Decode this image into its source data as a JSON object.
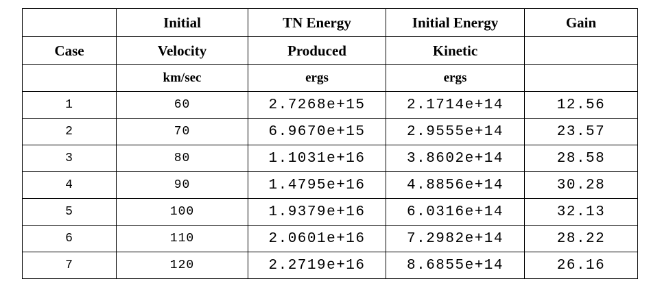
{
  "table": {
    "headers": {
      "case": "Case",
      "velocity_line1": "Initial",
      "velocity_line2": "Velocity",
      "velocity_unit": "km/sec",
      "tn_line1": "TN Energy",
      "tn_line2": "Produced",
      "tn_unit": "ergs",
      "ke_line1": "Initial Energy",
      "ke_line2": "Kinetic",
      "ke_unit": "ergs",
      "gain": "Gain"
    },
    "rows": [
      {
        "case": "1",
        "velocity": "60",
        "tn_energy": "2.7268e+15",
        "kinetic_energy": "2.1714e+14",
        "gain": "12.56"
      },
      {
        "case": "2",
        "velocity": "70",
        "tn_energy": "6.9670e+15",
        "kinetic_energy": "2.9555e+14",
        "gain": "23.57"
      },
      {
        "case": "3",
        "velocity": "80",
        "tn_energy": "1.1031e+16",
        "kinetic_energy": "3.8602e+14",
        "gain": "28.58"
      },
      {
        "case": "4",
        "velocity": "90",
        "tn_energy": "1.4795e+16",
        "kinetic_energy": "4.8856e+14",
        "gain": "30.28"
      },
      {
        "case": "5",
        "velocity": "100",
        "tn_energy": "1.9379e+16",
        "kinetic_energy": "6.0316e+14",
        "gain": "32.13"
      },
      {
        "case": "6",
        "velocity": "110",
        "tn_energy": "2.0601e+16",
        "kinetic_energy": "7.2982e+14",
        "gain": "28.22"
      },
      {
        "case": "7",
        "velocity": "120",
        "tn_energy": "2.2719e+16",
        "kinetic_energy": "8.6855e+14",
        "gain": "26.16"
      }
    ]
  }
}
